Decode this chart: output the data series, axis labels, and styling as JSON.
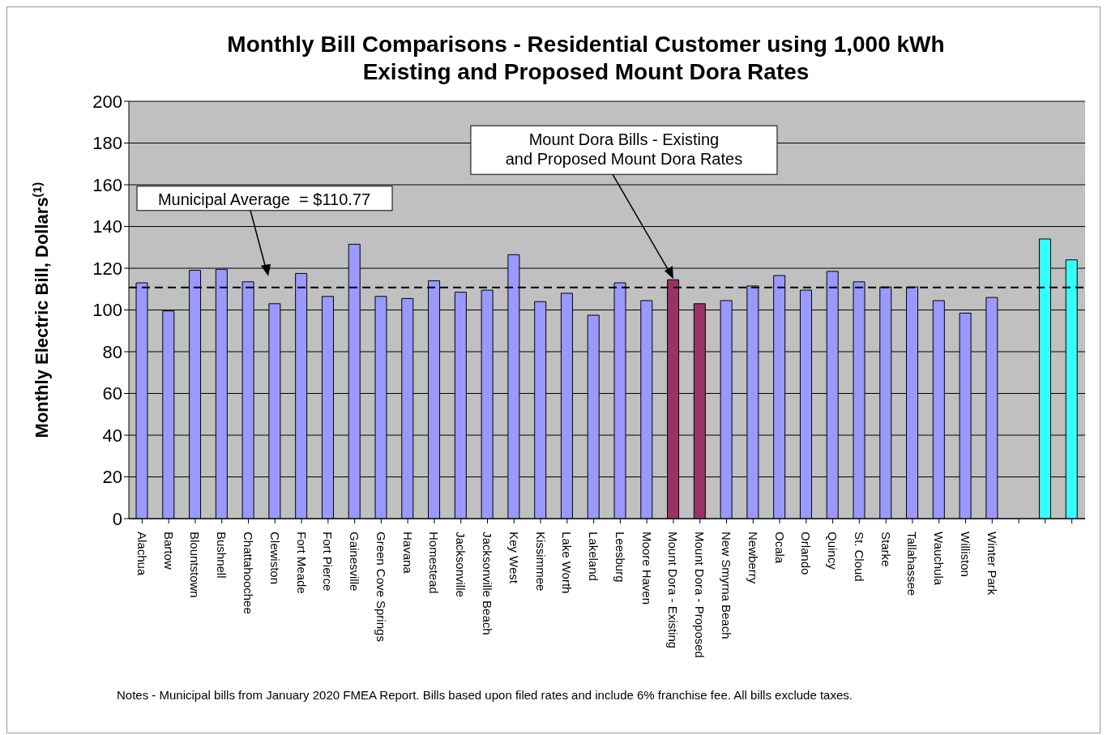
{
  "chart_data": {
    "type": "bar",
    "title": "Monthly Bill Comparisons - Residential Customer using 1,000 kWh",
    "subtitle": "Existing and Proposed Mount Dora Rates",
    "ylabel": "Monthly Electric Bill, Dollars$^{(1)}$",
    "categories": [
      "Alachua",
      "Bartow",
      "Blountstown",
      "Bushnell",
      "Chattahoochee",
      "Clewiston",
      "Fort Meade",
      "Fort Pierce",
      "Gainesville",
      "Green Cove Springs",
      "Havana",
      "Homestead",
      "Jacksonville",
      "Jacksonville Beach",
      "Key West",
      "Kissimmee",
      "Lake Worth",
      "Lakeland",
      "Leesburg",
      "Moore Haven",
      "Mount Dora - Existing",
      "Mount Dora - Proposed",
      "New Smyrna Beach",
      "Newberry",
      "Ocala",
      "Orlando",
      "Quincy",
      "St. Cloud",
      "Starke",
      "Tallahassee",
      "Wauchula",
      "Williston",
      "Winter Park",
      null,
      null,
      null
    ],
    "values": [
      113,
      99.5,
      119,
      119.5,
      113.5,
      103,
      117.5,
      106.5,
      131.5,
      106.5,
      105.5,
      114,
      108.5,
      109.5,
      126.5,
      104,
      108,
      97.5,
      113,
      104.5,
      114.5,
      103,
      104.5,
      111.5,
      116.5,
      109.5,
      118.5,
      113.5,
      111,
      111,
      104.5,
      98.5,
      106,
      null,
      134,
      124
    ],
    "colors": [
      "#9999ff",
      "#9999ff",
      "#9999ff",
      "#9999ff",
      "#9999ff",
      "#9999ff",
      "#9999ff",
      "#9999ff",
      "#9999ff",
      "#9999ff",
      "#9999ff",
      "#9999ff",
      "#9999ff",
      "#9999ff",
      "#9999ff",
      "#9999ff",
      "#9999ff",
      "#9999ff",
      "#9999ff",
      "#9999ff",
      "#993366",
      "#993366",
      "#9999ff",
      "#9999ff",
      "#9999ff",
      "#9999ff",
      "#9999ff",
      "#9999ff",
      "#9999ff",
      "#9999ff",
      "#9999ff",
      "#9999ff",
      "#9999ff",
      "#9999ff",
      "#33ffff",
      "#33ffff"
    ],
    "ylim": [
      0,
      200
    ],
    "yticks": [
      0,
      20,
      40,
      60,
      80,
      100,
      120,
      140,
      160,
      180,
      200
    ],
    "grid": "y",
    "ref_lines": [
      {
        "axis": "y",
        "value": 110.77,
        "label": "Municipal Average  = $110.77",
        "color": "#000000",
        "line_style": "dashed"
      }
    ],
    "annotations": [
      {
        "text": "Mount Dora Bills - Existing and Proposed Mount Dora Rates",
        "x": "Mount Dora - Existing",
        "y": 114.5
      },
      "Notes -  Municipal bills from January 2020 FMEA Report. Bills based upon filed rates and include 6% franchise fee. All bills exclude taxes."
    ]
  }
}
